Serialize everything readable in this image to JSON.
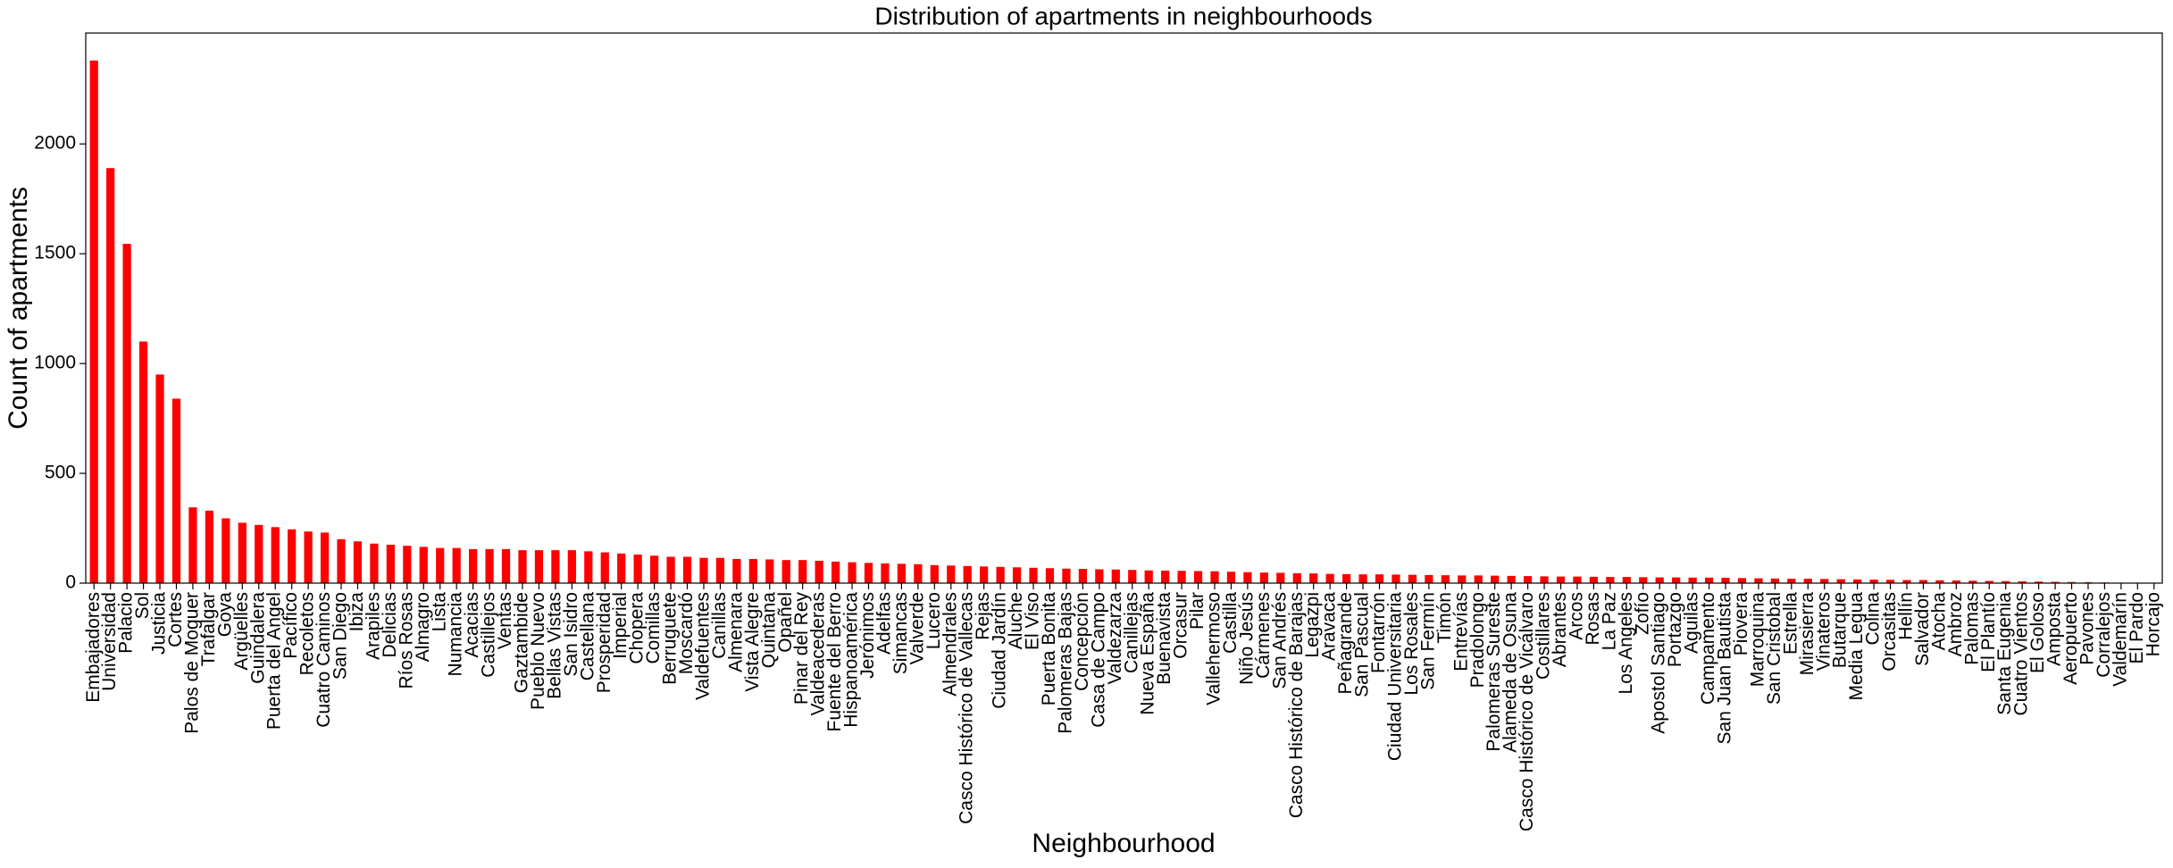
{
  "chart_data": {
    "type": "bar",
    "title": "Distribution of apartments in neighbourhoods",
    "x_label": "Neighbourhood",
    "y_label": "Count of apartments",
    "color": "#ff0000",
    "categories": [
      "Embajadores",
      "Universidad",
      "Palacio",
      "Sol",
      "Justicia",
      "Cortes",
      "Palos de Moguer",
      "Trafalgar",
      "Goya",
      "Argüelles",
      "Guindalera",
      "Puerta del Angel",
      "Pacífico",
      "Recoletos",
      "Cuatro Caminos",
      "San Diego",
      "Ibiza",
      "Arapiles",
      "Delicias",
      "Ríos Rosas",
      "Almagro",
      "Lista",
      "Numancia",
      "Acacias",
      "Castillejos",
      "Ventas",
      "Gaztambide",
      "Pueblo Nuevo",
      "Bellas Vistas",
      "San Isidro",
      "Castellana",
      "Prosperidad",
      "Imperial",
      "Chopera",
      "Comillas",
      "Berruguete",
      "Moscardó",
      "Valdefuentes",
      "Canillas",
      "Almenara",
      "Vista Alegre",
      "Quintana",
      "Opañel",
      "Pinar del Rey",
      "Valdeacederas",
      "Fuente del Berro",
      "Hispanoamérica",
      "Jerónimos",
      "Adelfas",
      "Simancas",
      "Valverde",
      "Lucero",
      "Almendrales",
      "Casco Histórico de Vallecas",
      "Rejas",
      "Ciudad Jardín",
      "Aluche",
      "El Viso",
      "Puerta Bonita",
      "Palomeras Bajas",
      "Concepción",
      "Casa de Campo",
      "Valdezarza",
      "Canillejas",
      "Nueva España",
      "Buenavista",
      "Orcasur",
      "Pilar",
      "Vallehermoso",
      "Castilla",
      "Niño Jesús",
      "Cármenes",
      "San Andrés",
      "Casco Histórico de Barajas",
      "Legazpi",
      "Aravaca",
      "Peñagrande",
      "San Pascual",
      "Fontarrón",
      "Ciudad Universitaria",
      "Los Rosales",
      "San Fermín",
      "Timón",
      "Entrevías",
      "Pradolongo",
      "Palomeras Sureste",
      "Alameda de Osuna",
      "Casco Histórico de Vicálvaro",
      "Costillares",
      "Abrantes",
      "Arcos",
      "Rosas",
      "La Paz",
      "Los Angeles",
      "Zofío",
      "Apostol Santiago",
      "Portazgo",
      "Aguilas",
      "Campamento",
      "San Juan Bautista",
      "Piovera",
      "Marroquina",
      "San Cristobal",
      "Estrella",
      "Mirasierra",
      "Vinateros",
      "Butarque",
      "Media Legua",
      "Colina",
      "Orcasitas",
      "Hellín",
      "Salvador",
      "Atocha",
      "Ambroz",
      "Palomas",
      "El Plantío",
      "Santa Eugenia",
      "Cuatro Vientos",
      "El Goloso",
      "Amposta",
      "Aeropuerto",
      "Pavones",
      "Corralejos",
      "Valdemarín",
      "El Pardo",
      "Horcajo"
    ],
    "values": [
      2380,
      1890,
      1545,
      1100,
      950,
      840,
      345,
      330,
      295,
      275,
      265,
      255,
      245,
      235,
      230,
      200,
      190,
      180,
      175,
      170,
      165,
      160,
      160,
      155,
      155,
      155,
      150,
      150,
      150,
      150,
      145,
      140,
      135,
      130,
      125,
      120,
      120,
      115,
      115,
      110,
      110,
      108,
      105,
      105,
      102,
      98,
      95,
      92,
      90,
      88,
      86,
      82,
      80,
      78,
      76,
      74,
      72,
      70,
      68,
      66,
      65,
      63,
      62,
      60,
      58,
      57,
      56,
      55,
      54,
      52,
      50,
      48,
      47,
      45,
      44,
      42,
      41,
      40,
      40,
      39,
      38,
      37,
      36,
      35,
      35,
      34,
      33,
      32,
      31,
      30,
      30,
      29,
      28,
      28,
      27,
      26,
      26,
      25,
      25,
      24,
      23,
      22,
      21,
      20,
      20,
      19,
      18,
      17,
      16,
      15,
      14,
      14,
      13,
      12,
      11,
      10,
      9,
      8,
      7,
      6,
      5,
      4,
      3,
      2,
      1,
      1
    ],
    "ylim": [
      0,
      2505
    ],
    "yticks": [
      0,
      500,
      1000,
      1500,
      2000
    ]
  }
}
